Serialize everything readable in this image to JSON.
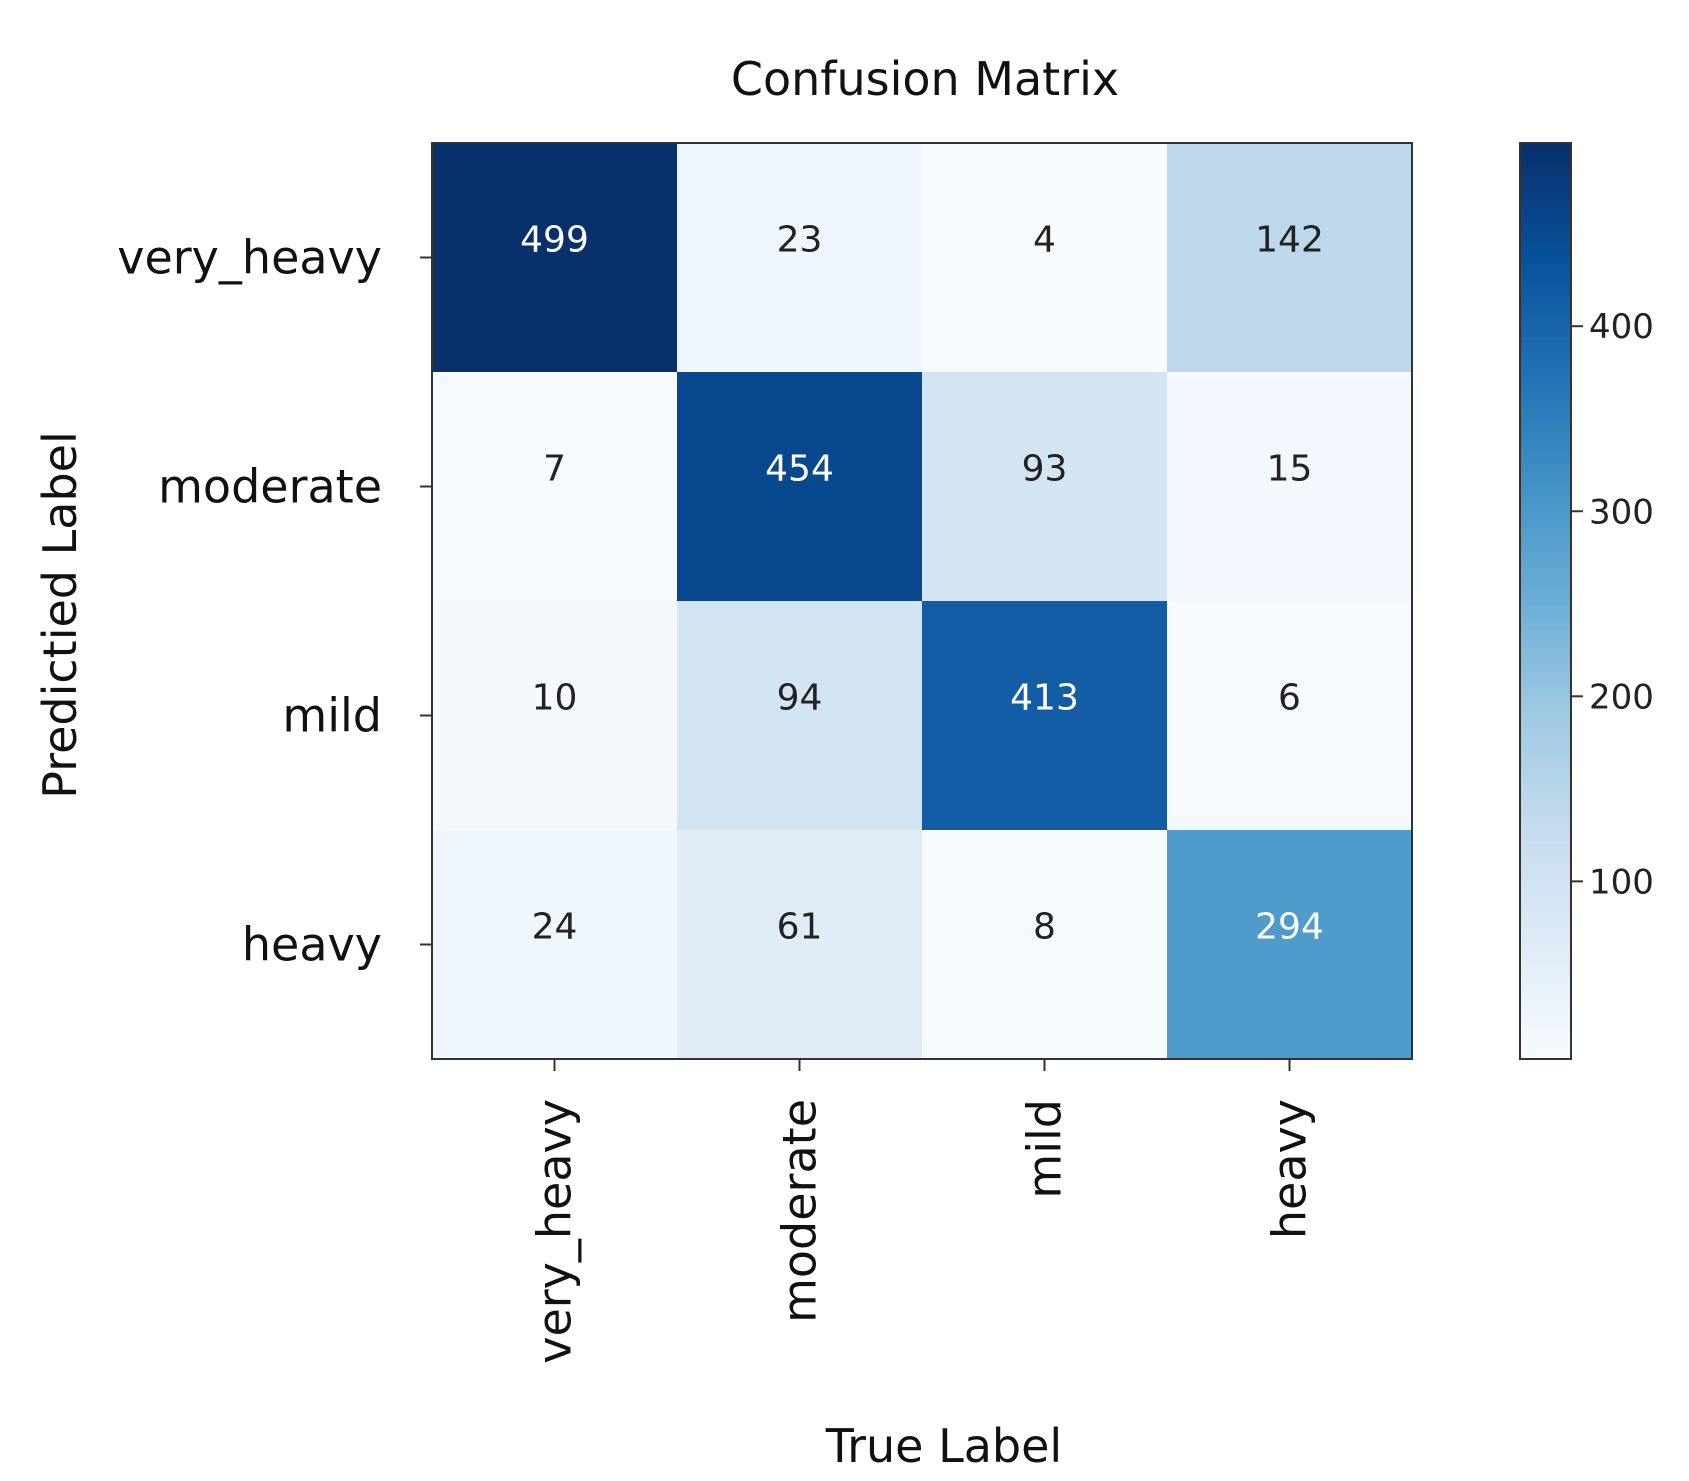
{
  "chart_data": {
    "type": "heatmap",
    "title": "Confusion Matrix",
    "xlabel": "True Label",
    "ylabel": "Predictied Label",
    "x_categories": [
      "very_heavy",
      "moderate",
      "mild",
      "heavy"
    ],
    "y_categories": [
      "very_heavy",
      "moderate",
      "mild",
      "heavy"
    ],
    "values": [
      [
        499,
        23,
        4,
        142
      ],
      [
        7,
        454,
        93,
        15
      ],
      [
        10,
        94,
        413,
        6
      ],
      [
        24,
        61,
        8,
        294
      ]
    ],
    "colormap": "Blues",
    "colorbar": {
      "range": [
        4,
        499
      ],
      "ticks": [
        100,
        200,
        300,
        400
      ],
      "tick_labels": [
        "100",
        "200",
        "300",
        "400"
      ]
    },
    "grid": false,
    "legend": "colorbar-right"
  }
}
